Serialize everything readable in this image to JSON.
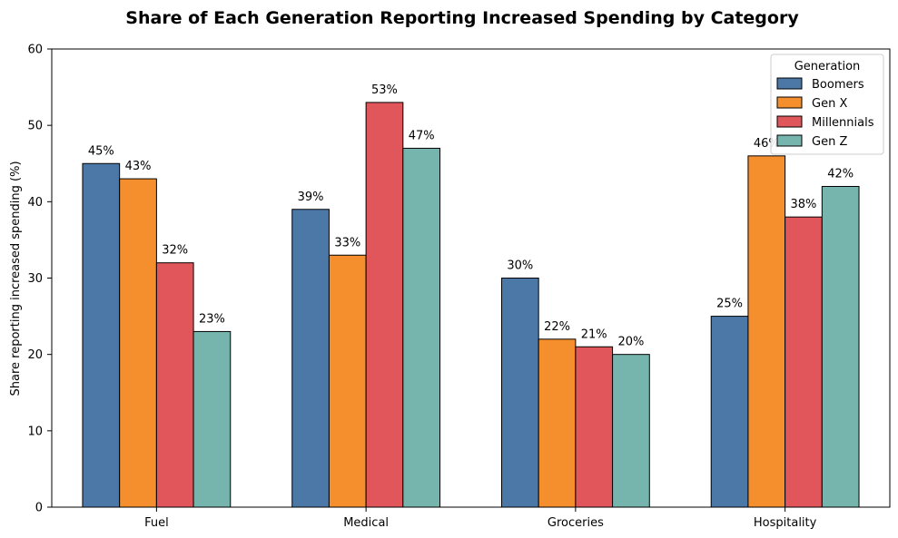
{
  "chart_data": {
    "type": "bar",
    "title": "Share of Each Generation Reporting Increased Spending by Category",
    "xlabel": "",
    "ylabel": "Share reporting increased spending (%)",
    "categories": [
      "Fuel",
      "Medical",
      "Groceries",
      "Hospitality"
    ],
    "ylim": [
      0,
      60
    ],
    "yticks": [
      "0",
      "10",
      "20",
      "30",
      "40",
      "50",
      "60"
    ],
    "grid": false,
    "legend": {
      "title": "Generation",
      "placement": "top-right"
    },
    "series": [
      {
        "name": "Boomers",
        "color": "#4c78a8",
        "values": [
          45,
          39,
          30,
          25
        ],
        "labels": [
          "45%",
          "39%",
          "30%",
          "25%"
        ]
      },
      {
        "name": "Gen X",
        "color": "#f58f2e",
        "values": [
          43,
          33,
          22,
          46
        ],
        "labels": [
          "43%",
          "33%",
          "22%",
          "46%"
        ]
      },
      {
        "name": "Millennials",
        "color": "#e1565a",
        "values": [
          32,
          53,
          21,
          38
        ],
        "labels": [
          "32%",
          "53%",
          "21%",
          "38%"
        ]
      },
      {
        "name": "Gen Z",
        "color": "#76b5ae",
        "values": [
          23,
          47,
          20,
          42
        ],
        "labels": [
          "23%",
          "47%",
          "20%",
          "42%"
        ]
      }
    ]
  }
}
